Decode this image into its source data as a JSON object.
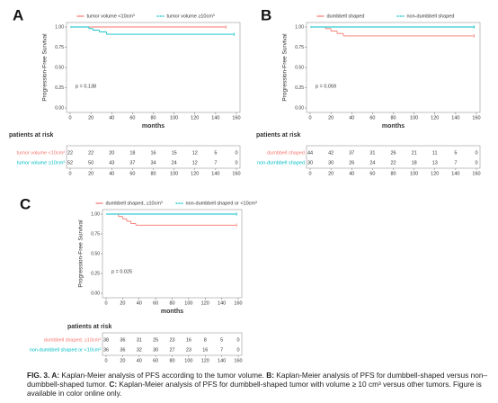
{
  "caption": [
    "FIG. 3. A:",
    " Kaplan-Meier analysis of PFS according to the tumor volume. ",
    "B:",
    " Kaplan-Meier analysis of PFS for dumbbell-shaped versus non–dumbbell-shaped tumor. ",
    "C:",
    " Kaplan-Meier analysis of PFS for dumbbell-shaped tumor with volume ≥ 10 cm³ versus other tumors. Figure is available in color online only."
  ],
  "chart_data": [
    {
      "type": "step",
      "panel": "A",
      "xlabel": "months",
      "ylabel": "Progression-Free Survival",
      "annotation": "p = 0.138",
      "risk_title": "patients at risk",
      "xlim": [
        0,
        160
      ],
      "xticks": [
        0,
        20,
        40,
        60,
        80,
        100,
        120,
        140,
        160
      ],
      "ylim": [
        0,
        1
      ],
      "yticks": [
        {
          "value": 0,
          "label": "0.00"
        },
        {
          "value": 0.25,
          "label": "0.25"
        },
        {
          "value": 0.5,
          "label": "0.50"
        },
        {
          "value": 0.75,
          "label": "0.75"
        },
        {
          "value": 1,
          "label": "1.00"
        }
      ],
      "series": [
        {
          "name": "tumor volume <10cm³",
          "color": "#f8766d",
          "x": [
            0,
            150
          ],
          "values": [
            1,
            1
          ],
          "risk": [
            22,
            22,
            20,
            18,
            16,
            15,
            12,
            5,
            0
          ]
        },
        {
          "name": "tumor volume ≥10cm³",
          "color": "#00bfc4",
          "x": [
            0,
            18,
            22,
            28,
            35,
            158
          ],
          "values": [
            1,
            0.98,
            0.96,
            0.94,
            0.91,
            0.91
          ],
          "risk": [
            52,
            50,
            43,
            37,
            34,
            24,
            12,
            7,
            0
          ]
        }
      ]
    },
    {
      "type": "step",
      "panel": "B",
      "xlabel": "months",
      "ylabel": "Progression-Free Survival",
      "annotation": "p = 0.059",
      "risk_title": "patients at risk",
      "xlim": [
        0,
        160
      ],
      "xticks": [
        0,
        20,
        40,
        60,
        80,
        100,
        120,
        140,
        160
      ],
      "ylim": [
        0,
        1
      ],
      "yticks": [
        {
          "value": 0,
          "label": "0.00"
        },
        {
          "value": 0.25,
          "label": "0.25"
        },
        {
          "value": 0.5,
          "label": "0.50"
        },
        {
          "value": 0.75,
          "label": "0.75"
        },
        {
          "value": 1,
          "label": "1.00"
        }
      ],
      "series": [
        {
          "name": "dumbbell shaped",
          "color": "#f8766d",
          "x": [
            0,
            15,
            20,
            26,
            32,
            158
          ],
          "values": [
            1,
            0.98,
            0.95,
            0.92,
            0.89,
            0.89
          ],
          "risk": [
            44,
            42,
            37,
            31,
            26,
            21,
            11,
            5,
            0
          ]
        },
        {
          "name": "non-dumbbell shaped",
          "color": "#00bfc4",
          "x": [
            0,
            158
          ],
          "values": [
            1,
            1
          ],
          "risk": [
            30,
            30,
            26,
            24,
            22,
            18,
            13,
            7,
            0
          ]
        }
      ]
    },
    {
      "type": "step",
      "panel": "C",
      "xlabel": "months",
      "ylabel": "Progression-Free Survival",
      "annotation": "p = 0.025",
      "risk_title": "patients at risk",
      "xlim": [
        0,
        160
      ],
      "xticks": [
        0,
        20,
        40,
        60,
        80,
        100,
        120,
        140,
        160
      ],
      "ylim": [
        0,
        1
      ],
      "yticks": [
        {
          "value": 0,
          "label": "0.00"
        },
        {
          "value": 0.25,
          "label": "0.25"
        },
        {
          "value": 0.5,
          "label": "0.50"
        },
        {
          "value": 0.75,
          "label": "0.75"
        },
        {
          "value": 1,
          "label": "1.00"
        }
      ],
      "series": [
        {
          "name": "dumbbell shaped, ≥10cm³",
          "color": "#f8766d",
          "x": [
            0,
            15,
            20,
            25,
            30,
            36,
            158
          ],
          "values": [
            1,
            0.97,
            0.94,
            0.91,
            0.88,
            0.86,
            0.86
          ],
          "risk": [
            38,
            36,
            31,
            25,
            23,
            16,
            8,
            5,
            0
          ]
        },
        {
          "name": "non-dumbbell shaped or <10cm³",
          "color": "#00bfc4",
          "x": [
            0,
            158
          ],
          "values": [
            1,
            1
          ],
          "risk": [
            36,
            36,
            32,
            30,
            27,
            23,
            16,
            7,
            0
          ]
        }
      ]
    }
  ]
}
